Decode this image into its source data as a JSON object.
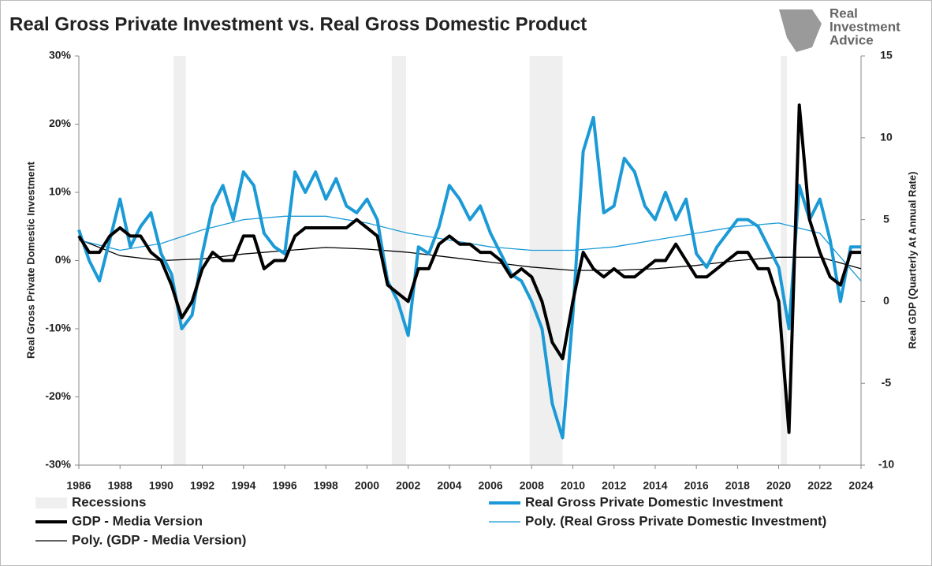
{
  "chart_data": {
    "type": "line",
    "title": "Real Gross Private Investment vs. Real Gross Domestic Product",
    "ylabel": "Real Gross Private Domestic Investment",
    "y2label": "Real GDP (Quarterly At Annual Rate)",
    "xlim": [
      1986,
      2024
    ],
    "xticks": [
      1986,
      1988,
      1990,
      1992,
      1994,
      1996,
      1998,
      2000,
      2002,
      2004,
      2006,
      2008,
      2010,
      2012,
      2014,
      2016,
      2018,
      2020,
      2022,
      2024
    ],
    "ylim": [
      -30,
      30
    ],
    "yticks": [
      {
        "value": -30,
        "label": "-30%"
      },
      {
        "value": -20,
        "label": "-20%"
      },
      {
        "value": -10,
        "label": "-10%"
      },
      {
        "value": 0,
        "label": "0%"
      },
      {
        "value": 10,
        "label": "10%"
      },
      {
        "value": 20,
        "label": "20%"
      },
      {
        "value": 30,
        "label": "30%"
      }
    ],
    "y2lim": [
      -10,
      15
    ],
    "y2ticks": [
      -10,
      -5,
      0,
      5,
      10,
      15
    ],
    "recessions": {
      "name": "Recessions",
      "color": "#efefef",
      "periods": [
        [
          1990.6,
          1991.2
        ],
        [
          2001.2,
          2001.9
        ],
        [
          2007.9,
          2009.5
        ],
        [
          2020.1,
          2020.4
        ]
      ]
    },
    "x": [
      1986,
      1986.5,
      1987,
      1987.5,
      1988,
      1988.5,
      1989,
      1989.5,
      1990,
      1990.5,
      1991,
      1991.5,
      1992,
      1992.5,
      1993,
      1993.5,
      1994,
      1994.5,
      1995,
      1995.5,
      1996,
      1996.5,
      1997,
      1997.5,
      1998,
      1998.5,
      1999,
      1999.5,
      2000,
      2000.5,
      2001,
      2001.5,
      2002,
      2002.5,
      2003,
      2003.5,
      2004,
      2004.5,
      2005,
      2005.5,
      2006,
      2006.5,
      2007,
      2007.5,
      2008,
      2008.5,
      2009,
      2009.5,
      2010,
      2010.5,
      2011,
      2011.5,
      2012,
      2012.5,
      2013,
      2013.5,
      2014,
      2014.5,
      2015,
      2015.5,
      2016,
      2016.5,
      2017,
      2017.5,
      2018,
      2018.5,
      2019,
      2019.5,
      2020,
      2020.5,
      2021,
      2021.5,
      2022,
      2022.5,
      2023,
      2023.5,
      2024
    ],
    "series": [
      {
        "name": "Real Gross Private Domestic Investment",
        "color": "#1b9ad6",
        "axis": "y",
        "values": [
          4.5,
          0,
          -3,
          3,
          9,
          2,
          5,
          7,
          1,
          -2,
          -10,
          -8,
          1,
          8,
          11,
          6,
          13,
          11,
          4,
          2,
          1,
          13,
          10,
          13,
          9,
          12,
          8,
          7,
          9,
          6,
          -3,
          -6,
          -11,
          2,
          1,
          5,
          11,
          9,
          6,
          8,
          4,
          1,
          -2,
          -3,
          -6,
          -10,
          -21,
          -26,
          -8,
          16,
          21,
          7,
          8,
          15,
          13,
          8,
          6,
          10,
          6,
          9,
          1,
          -1,
          2,
          4,
          6,
          6,
          5,
          2,
          -1,
          -10,
          11,
          6,
          9,
          3,
          -6,
          2,
          2
        ]
      },
      {
        "name": "GDP - Media Version",
        "color": "#000000",
        "axis": "y2",
        "values": [
          4,
          3,
          3,
          4,
          4.5,
          4,
          4,
          3,
          2.5,
          1,
          -1,
          0,
          2,
          3,
          2.5,
          2.5,
          4,
          4,
          2,
          2.5,
          2.5,
          4,
          4.5,
          4.5,
          4.5,
          4.5,
          4.5,
          5,
          4.5,
          4,
          1,
          0.5,
          0,
          2,
          2,
          3.5,
          4,
          3.5,
          3.5,
          3,
          3,
          2.5,
          1.5,
          2,
          1.5,
          0,
          -2.5,
          -3.5,
          0,
          3,
          2,
          1.5,
          2,
          1.5,
          1.5,
          2,
          2.5,
          2.5,
          3.5,
          2.5,
          1.5,
          1.5,
          2,
          2.5,
          3,
          3,
          2,
          2,
          0,
          -8,
          12,
          5,
          3,
          1.5,
          1,
          3,
          3
        ]
      },
      {
        "name": "Poly. (Real Gross Private Domestic Investment)",
        "color": "#1b9ad6",
        "axis": "y",
        "x": [
          1986,
          1988,
          1990,
          1992,
          1994,
          1996,
          1998,
          2000,
          2002,
          2004,
          2006,
          2008,
          2010,
          2012,
          2014,
          2016,
          2018,
          2020,
          2022,
          2024
        ],
        "values": [
          3,
          1.5,
          2.5,
          4.5,
          6,
          6.5,
          6.5,
          5.5,
          4,
          3,
          2,
          1.5,
          1.5,
          2,
          3,
          4,
          5,
          5.5,
          4,
          -3
        ]
      },
      {
        "name": "Poly. (GDP - Media Version)",
        "color": "#000000",
        "axis": "y2",
        "x": [
          1986,
          1988,
          1990,
          1992,
          1994,
          1996,
          1998,
          2000,
          2002,
          2004,
          2006,
          2008,
          2010,
          2012,
          2014,
          2016,
          2018,
          2020,
          2022,
          2024
        ],
        "values": [
          3.8,
          2.8,
          2.5,
          2.6,
          2.9,
          3.1,
          3.3,
          3.2,
          3.0,
          2.7,
          2.4,
          2.1,
          1.9,
          1.9,
          2.0,
          2.2,
          2.5,
          2.7,
          2.7,
          2.0
        ]
      }
    ]
  },
  "logo": {
    "lines": [
      "Real",
      "Investment",
      "Advice"
    ]
  }
}
